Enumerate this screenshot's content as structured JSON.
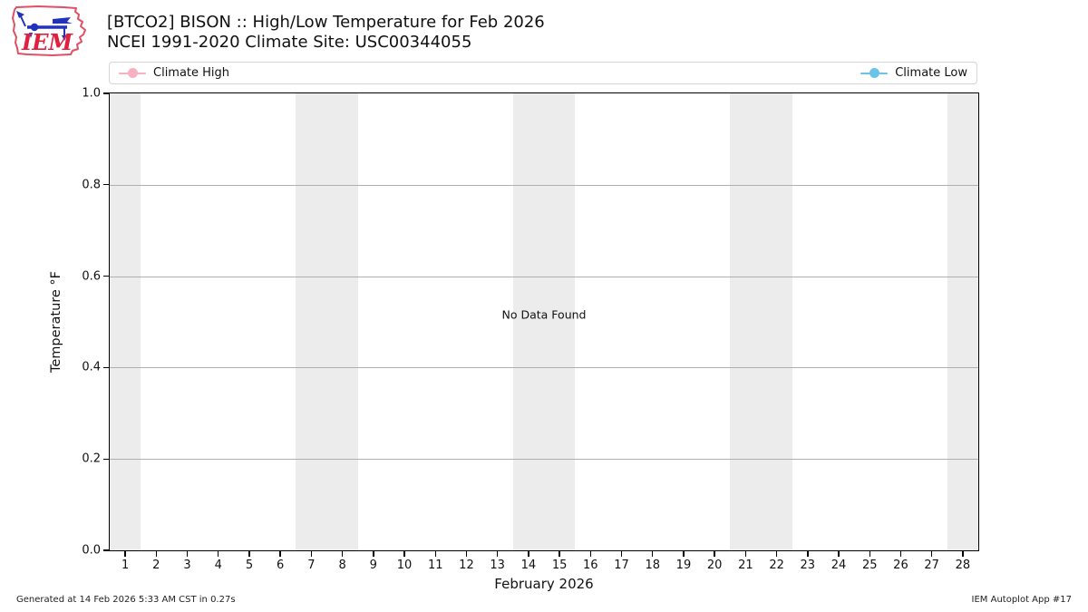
{
  "header": {
    "title_line1": "[BTCO2] BISON :: High/Low Temperature for Feb 2026",
    "title_line2": "NCEI 1991-2020 Climate Site: USC00344055",
    "logo_text": "IEM"
  },
  "legend": {
    "items": [
      {
        "label": "Climate High",
        "color": "#f8b1c0"
      },
      {
        "label": "Climate Low",
        "color": "#6bc4e8"
      }
    ]
  },
  "chart_data": {
    "type": "line",
    "title": "[BTCO2] BISON :: High/Low Temperature for Feb 2026",
    "subtitle": "NCEI 1991-2020 Climate Site: USC00344055",
    "xlabel": "February 2026",
    "ylabel": "Temperature °F",
    "xlim": [
      0.5,
      28.5
    ],
    "ylim": [
      0.0,
      1.0
    ],
    "xticks": [
      1,
      2,
      3,
      4,
      5,
      6,
      7,
      8,
      9,
      10,
      11,
      12,
      13,
      14,
      15,
      16,
      17,
      18,
      19,
      20,
      21,
      22,
      23,
      24,
      25,
      26,
      27,
      28
    ],
    "yticks": [
      0.0,
      0.2,
      0.4,
      0.6,
      0.8,
      1.0
    ],
    "grid": "horizontal",
    "grid_color": "#b0b0b0",
    "weekend_bands": [
      [
        0.5,
        1.5
      ],
      [
        6.5,
        8.5
      ],
      [
        13.5,
        15.5
      ],
      [
        20.5,
        22.5
      ],
      [
        27.5,
        28.5
      ]
    ],
    "band_color": "#ececec",
    "legend_position": "top-expand",
    "no_data_text": "No Data Found",
    "series": [
      {
        "name": "Climate High",
        "color": "#f8b1c0",
        "values": []
      },
      {
        "name": "Climate Low",
        "color": "#6bc4e8",
        "values": []
      }
    ]
  },
  "footer": {
    "left": "Generated at 14 Feb 2026 5:33 AM CST in 0.27s",
    "right": "IEM Autoplot App #17"
  }
}
